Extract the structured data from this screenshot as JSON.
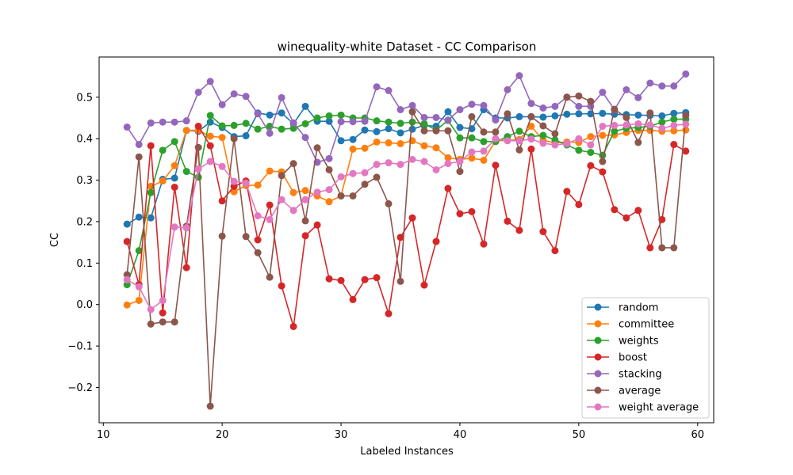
{
  "chart_data": {
    "type": "line",
    "title": "winequality-white Dataset - CC Comparison",
    "xlabel": "Labeled Instances",
    "ylabel": "CC",
    "xlim": [
      9.65,
      61.35
    ],
    "ylim": [
      -0.285,
      0.597
    ],
    "xticks": [
      10,
      20,
      30,
      40,
      50,
      60
    ],
    "xtick_labels": [
      "10",
      "20",
      "30",
      "40",
      "50",
      "60"
    ],
    "yticks": [
      -0.2,
      -0.1,
      0.0,
      0.1,
      0.2,
      0.3,
      0.4,
      0.5
    ],
    "ytick_labels": [
      "−0.2",
      "−0.1",
      "0.0",
      "0.1",
      "0.2",
      "0.3",
      "0.4",
      "0.5"
    ],
    "grid": false,
    "legend_position": "lower-right",
    "x": [
      12,
      13,
      14,
      15,
      16,
      17,
      18,
      19,
      20,
      21,
      22,
      23,
      24,
      25,
      26,
      27,
      28,
      29,
      30,
      31,
      32,
      33,
      34,
      35,
      36,
      37,
      38,
      39,
      40,
      41,
      42,
      43,
      44,
      45,
      46,
      47,
      48,
      49,
      50,
      51,
      52,
      53,
      54,
      55,
      56,
      57,
      58,
      59
    ],
    "series": [
      {
        "name": "random",
        "color": "#1f77b4",
        "values": [
          0.194,
          0.211,
          0.209,
          0.302,
          0.305,
          0.42,
          0.418,
          0.44,
          0.427,
          0.405,
          0.407,
          0.462,
          0.457,
          0.462,
          0.436,
          0.478,
          0.442,
          0.442,
          0.395,
          0.398,
          0.421,
          0.417,
          0.424,
          0.414,
          0.423,
          0.432,
          0.43,
          0.465,
          0.427,
          0.424,
          0.47,
          0.45,
          0.45,
          0.453,
          0.453,
          0.452,
          0.455,
          0.459,
          0.46,
          0.46,
          0.461,
          0.459,
          0.458,
          0.457,
          0.456,
          0.455,
          0.461,
          0.463
        ]
      },
      {
        "name": "committee",
        "color": "#ff7f0e",
        "values": [
          -0.001,
          0.01,
          0.285,
          0.298,
          0.335,
          0.42,
          0.42,
          0.406,
          0.403,
          0.272,
          0.287,
          0.288,
          0.322,
          0.32,
          0.27,
          0.275,
          0.262,
          0.248,
          0.262,
          0.375,
          0.377,
          0.392,
          0.39,
          0.388,
          0.395,
          0.383,
          0.378,
          0.354,
          0.35,
          0.353,
          0.348,
          0.395,
          0.396,
          0.398,
          0.43,
          0.396,
          0.39,
          0.392,
          0.391,
          0.405,
          0.408,
          0.409,
          0.415,
          0.42,
          0.42,
          0.418,
          0.419,
          0.421
        ]
      },
      {
        "name": "weights",
        "color": "#2ca02c",
        "values": [
          0.048,
          0.13,
          0.27,
          0.372,
          0.393,
          0.321,
          0.307,
          0.456,
          0.431,
          0.432,
          0.437,
          0.423,
          0.43,
          0.423,
          0.425,
          0.436,
          0.45,
          0.455,
          0.457,
          0.45,
          0.45,
          0.443,
          0.44,
          0.437,
          0.44,
          0.436,
          0.421,
          0.444,
          0.402,
          0.402,
          0.393,
          0.393,
          0.405,
          0.418,
          0.405,
          0.408,
          0.397,
          0.385,
          0.372,
          0.367,
          0.36,
          0.418,
          0.425,
          0.427,
          0.43,
          0.44,
          0.447,
          0.447
        ]
      },
      {
        "name": "boost",
        "color": "#d62728",
        "values": [
          0.152,
          0.048,
          0.383,
          -0.02,
          0.283,
          0.089,
          0.43,
          0.383,
          0.25,
          0.285,
          0.298,
          0.156,
          0.24,
          0.045,
          -0.053,
          0.166,
          0.192,
          0.062,
          0.058,
          0.012,
          0.06,
          0.065,
          -0.022,
          0.162,
          0.209,
          0.047,
          0.152,
          0.28,
          0.219,
          0.224,
          0.146,
          0.336,
          0.201,
          0.179,
          0.375,
          0.176,
          0.13,
          0.273,
          0.241,
          0.335,
          0.32,
          0.229,
          0.209,
          0.227,
          0.137,
          0.205,
          0.386,
          0.37
        ]
      },
      {
        "name": "stacking",
        "color": "#9467bd",
        "values": [
          0.428,
          0.386,
          0.438,
          0.44,
          0.44,
          0.443,
          0.512,
          0.538,
          0.482,
          0.508,
          0.502,
          0.46,
          0.413,
          0.499,
          0.438,
          0.403,
          0.343,
          0.352,
          0.441,
          0.441,
          0.442,
          0.525,
          0.516,
          0.47,
          0.48,
          0.451,
          0.451,
          0.445,
          0.47,
          0.483,
          0.48,
          0.445,
          0.518,
          0.552,
          0.485,
          0.474,
          0.478,
          0.5,
          0.478,
          0.478,
          0.512,
          0.47,
          0.518,
          0.499,
          0.534,
          0.527,
          0.527,
          0.556
        ]
      },
      {
        "name": "average",
        "color": "#8c564b",
        "values": [
          0.072,
          0.356,
          -0.047,
          -0.042,
          -0.042,
          0.189,
          0.379,
          -0.245,
          0.165,
          0.4,
          0.164,
          0.125,
          0.066,
          0.311,
          0.34,
          0.202,
          0.378,
          0.325,
          0.262,
          0.262,
          0.29,
          0.307,
          0.243,
          0.056,
          0.465,
          0.419,
          0.419,
          0.419,
          0.321,
          0.453,
          0.416,
          0.416,
          0.46,
          0.373,
          0.453,
          0.431,
          0.412,
          0.5,
          0.503,
          0.49,
          0.345,
          0.471,
          0.451,
          0.391,
          0.462,
          0.137,
          0.137,
          0.456
        ]
      },
      {
        "name": "weight average",
        "color": "#e377c2",
        "values": [
          0.06,
          0.043,
          -0.012,
          0.01,
          0.187,
          0.185,
          0.327,
          0.345,
          0.333,
          0.297,
          0.293,
          0.214,
          0.205,
          0.253,
          0.227,
          0.253,
          0.271,
          0.277,
          0.308,
          0.316,
          0.318,
          0.338,
          0.342,
          0.338,
          0.35,
          0.345,
          0.325,
          0.34,
          0.345,
          0.368,
          0.37,
          0.4,
          0.395,
          0.395,
          0.399,
          0.389,
          0.385,
          0.388,
          0.4,
          0.385,
          0.43,
          0.432,
          0.433,
          0.436,
          0.433,
          0.425,
          0.432,
          0.435
        ]
      }
    ]
  }
}
